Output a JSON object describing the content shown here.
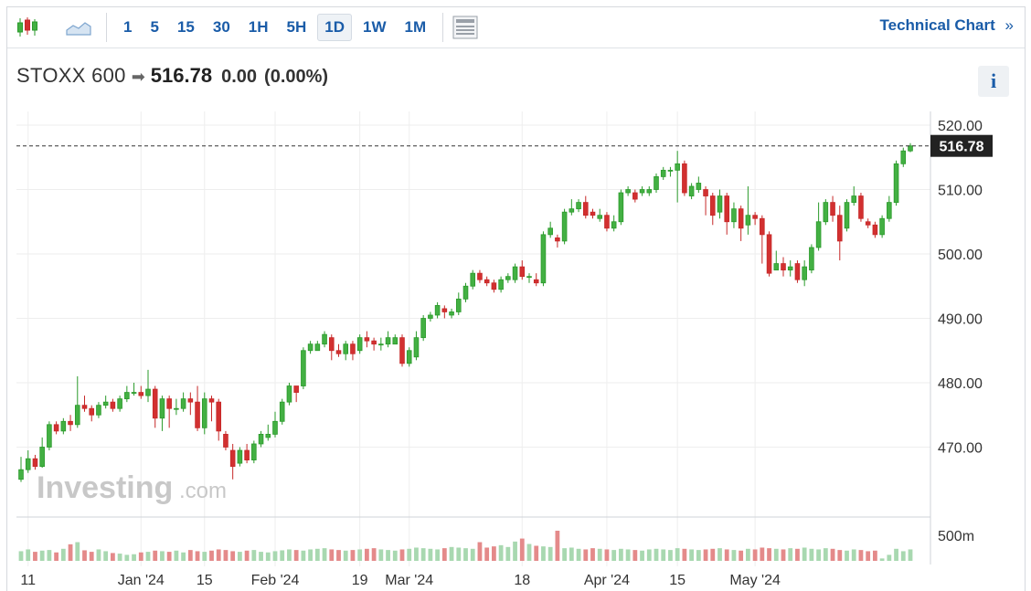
{
  "toolbar": {
    "timeframes": [
      "1",
      "5",
      "15",
      "30",
      "1H",
      "5H",
      "1D",
      "1W",
      "1M"
    ],
    "active_timeframe": "1D",
    "technical_chart_label": "Technical Chart",
    "technical_chart_chevron": "»"
  },
  "header": {
    "name": "STOXX 600",
    "price": "516.78",
    "change": "0.00",
    "change_pct": "(0.00%)",
    "info_label": "i"
  },
  "watermark": {
    "brand": "Investing",
    "suffix": ".com"
  },
  "colors": {
    "up": "#2a9a2a",
    "up_fill": "#43b043",
    "down": "#c62828",
    "down_fill": "#d23030",
    "vol_up": "#a8d8b0",
    "vol_down": "#e48a8a",
    "grid": "#eeeeee",
    "price_tag_bg": "#222222"
  },
  "chart_data": {
    "type": "candlestick",
    "symbol": "STOXX 600",
    "interval": "1D",
    "y_ticks": [
      "520.00",
      "510.00",
      "500.00",
      "490.00",
      "480.00",
      "470.00"
    ],
    "y_tick_values": [
      520,
      510,
      500,
      490,
      480,
      470
    ],
    "ylim": [
      460.3,
      522.5
    ],
    "last_price": 516.78,
    "last_price_label": "516.78",
    "volume_tick_label": "500m",
    "x_labels": [
      "11",
      "Jan '24",
      "15",
      "Feb '24",
      "19",
      "Mar '24",
      "18",
      "Apr '24",
      "15",
      "May '24"
    ],
    "x_label_index": [
      1,
      17,
      26,
      36,
      48,
      55,
      71,
      83,
      93,
      104
    ],
    "volume_max_rel": 1.0,
    "candles": [
      [
        466.5,
        465.0,
        468.5,
        464.6
      ],
      [
        468.2,
        466.5,
        469.5,
        466.0
      ],
      [
        467.0,
        468.2,
        468.8,
        466.5
      ],
      [
        470.0,
        467.0,
        471.5,
        466.8
      ],
      [
        473.5,
        470.0,
        474.0,
        469.5
      ],
      [
        472.5,
        473.5,
        474.0,
        472.0
      ],
      [
        474.0,
        472.5,
        474.5,
        472.0
      ],
      [
        473.5,
        474.0,
        475.0,
        472.5
      ],
      [
        476.5,
        473.5,
        481.0,
        473.0
      ],
      [
        476.0,
        476.5,
        478.0,
        475.5
      ],
      [
        475.0,
        476.0,
        476.5,
        474.0
      ],
      [
        476.5,
        475.0,
        477.0,
        474.5
      ],
      [
        477.0,
        476.5,
        478.0,
        476.0
      ],
      [
        476.0,
        477.0,
        477.5,
        475.5
      ],
      [
        477.5,
        476.0,
        478.0,
        475.5
      ],
      [
        478.5,
        477.5,
        479.5,
        477.0
      ],
      [
        478.5,
        478.5,
        480.0,
        478.0
      ],
      [
        478.0,
        478.5,
        479.5,
        477.5
      ],
      [
        479.0,
        478.0,
        482.0,
        477.0
      ],
      [
        474.5,
        479.0,
        479.5,
        473.0
      ],
      [
        477.5,
        474.5,
        478.0,
        472.5
      ],
      [
        476.0,
        477.5,
        478.0,
        473.0
      ],
      [
        476.0,
        476.0,
        477.5,
        475.0
      ],
      [
        477.5,
        476.0,
        478.5,
        475.5
      ],
      [
        477.0,
        477.5,
        478.5,
        475.0
      ],
      [
        473.0,
        477.0,
        479.5,
        472.5
      ],
      [
        477.5,
        473.0,
        478.5,
        472.0
      ],
      [
        477.0,
        477.5,
        478.0,
        474.0
      ],
      [
        472.5,
        477.0,
        477.5,
        471.0
      ],
      [
        470.0,
        472.0,
        472.5,
        469.5
      ],
      [
        467.0,
        469.5,
        470.5,
        465.0
      ],
      [
        469.5,
        467.5,
        470.0,
        467.0
      ],
      [
        468.0,
        469.5,
        470.5,
        467.5
      ],
      [
        470.5,
        468.0,
        471.0,
        467.5
      ],
      [
        472.0,
        470.5,
        472.5,
        470.0
      ],
      [
        472.0,
        471.5,
        473.5,
        471.0
      ],
      [
        474.0,
        472.0,
        475.5,
        471.5
      ],
      [
        477.0,
        474.0,
        477.5,
        473.5
      ],
      [
        479.5,
        477.0,
        480.0,
        476.5
      ],
      [
        478.5,
        479.5,
        479.5,
        477.0
      ],
      [
        485.0,
        479.5,
        485.5,
        479.0
      ],
      [
        486.0,
        485.0,
        486.5,
        484.5
      ],
      [
        486.0,
        485.0,
        486.5,
        485.0
      ],
      [
        487.5,
        486.0,
        488.0,
        485.5
      ],
      [
        485.0,
        487.0,
        487.5,
        483.5
      ],
      [
        484.5,
        485.0,
        486.0,
        484.0
      ],
      [
        486.0,
        484.5,
        486.5,
        483.5
      ],
      [
        484.5,
        486.0,
        486.5,
        483.5
      ],
      [
        487.0,
        485.0,
        487.5,
        484.5
      ],
      [
        486.5,
        487.0,
        488.0,
        485.5
      ],
      [
        486.0,
        486.5,
        487.0,
        485.0
      ],
      [
        486.0,
        486.0,
        487.0,
        485.0
      ],
      [
        487.0,
        486.0,
        488.0,
        485.5
      ],
      [
        487.0,
        486.0,
        487.5,
        486.0
      ],
      [
        483.0,
        487.0,
        487.5,
        482.5
      ],
      [
        485.0,
        483.0,
        485.5,
        482.5
      ],
      [
        487.0,
        484.0,
        488.0,
        483.5
      ],
      [
        490.0,
        487.0,
        490.5,
        486.5
      ],
      [
        490.5,
        490.0,
        491.0,
        489.5
      ],
      [
        492.0,
        490.5,
        492.5,
        490.0
      ],
      [
        491.0,
        491.5,
        492.0,
        490.0
      ],
      [
        491.0,
        490.5,
        491.5,
        490.0
      ],
      [
        493.0,
        491.0,
        494.0,
        490.5
      ],
      [
        495.0,
        493.0,
        495.5,
        492.5
      ],
      [
        497.0,
        495.0,
        497.5,
        494.5
      ],
      [
        496.0,
        497.0,
        497.5,
        495.5
      ],
      [
        495.5,
        496.0,
        496.5,
        495.0
      ],
      [
        494.5,
        495.5,
        496.0,
        494.0
      ],
      [
        496.0,
        494.5,
        496.5,
        494.0
      ],
      [
        496.5,
        496.0,
        497.0,
        495.5
      ],
      [
        498.0,
        496.0,
        498.5,
        495.5
      ],
      [
        496.5,
        498.0,
        499.0,
        496.0
      ],
      [
        496.5,
        496.5,
        497.0,
        495.5
      ],
      [
        495.5,
        496.0,
        497.0,
        495.0
      ],
      [
        503.0,
        495.5,
        503.5,
        495.0
      ],
      [
        504.0,
        503.0,
        505.0,
        502.5
      ],
      [
        502.0,
        502.5,
        503.0,
        501.0
      ],
      [
        506.5,
        502.0,
        507.0,
        501.5
      ],
      [
        507.0,
        506.5,
        508.5,
        506.0
      ],
      [
        508.0,
        507.0,
        508.5,
        506.5
      ],
      [
        506.0,
        508.0,
        509.0,
        505.5
      ],
      [
        506.0,
        506.5,
        507.0,
        505.5
      ],
      [
        506.0,
        505.5,
        507.0,
        505.0
      ],
      [
        504.0,
        506.0,
        506.5,
        503.5
      ],
      [
        505.0,
        504.0,
        506.0,
        503.5
      ],
      [
        509.5,
        505.0,
        510.0,
        504.5
      ],
      [
        510.0,
        509.5,
        510.5,
        509.0
      ],
      [
        508.5,
        509.5,
        510.0,
        508.0
      ],
      [
        510.0,
        509.5,
        510.5,
        509.0
      ],
      [
        510.0,
        509.5,
        510.5,
        509.0
      ],
      [
        512.0,
        510.0,
        512.5,
        509.5
      ],
      [
        513.0,
        512.0,
        513.5,
        511.5
      ],
      [
        513.0,
        513.0,
        513.5,
        512.0
      ],
      [
        514.0,
        513.0,
        516.0,
        508.0
      ],
      [
        509.5,
        514.0,
        514.5,
        509.0
      ],
      [
        510.5,
        509.0,
        511.0,
        508.5
      ],
      [
        511.0,
        510.0,
        512.0,
        509.5
      ],
      [
        509.0,
        510.0,
        510.5,
        506.0
      ],
      [
        506.0,
        509.0,
        509.5,
        504.5
      ],
      [
        509.0,
        506.5,
        510.0,
        505.5
      ],
      [
        505.0,
        509.0,
        509.5,
        503.0
      ],
      [
        507.0,
        505.0,
        508.0,
        504.0
      ],
      [
        504.0,
        507.0,
        507.5,
        502.0
      ],
      [
        506.0,
        504.5,
        510.5,
        503.0
      ],
      [
        505.5,
        506.0,
        506.5,
        504.5
      ],
      [
        503.0,
        505.5,
        506.0,
        498.5
      ],
      [
        497.0,
        503.0,
        503.5,
        496.5
      ],
      [
        498.5,
        497.5,
        500.5,
        497.5
      ],
      [
        497.5,
        498.5,
        499.5,
        496.5
      ],
      [
        498.0,
        497.5,
        499.0,
        496.5
      ],
      [
        496.0,
        498.5,
        499.0,
        495.5
      ],
      [
        498.0,
        496.0,
        499.0,
        495.0
      ],
      [
        501.0,
        497.5,
        501.5,
        497.0
      ],
      [
        505.0,
        501.0,
        508.0,
        500.5
      ],
      [
        508.0,
        505.0,
        508.5,
        504.5
      ],
      [
        506.0,
        508.0,
        509.0,
        505.0
      ],
      [
        502.0,
        506.0,
        507.5,
        499.0
      ],
      [
        508.0,
        504.0,
        508.5,
        503.5
      ],
      [
        509.0,
        508.0,
        510.5,
        507.5
      ],
      [
        505.5,
        509.0,
        509.5,
        505.0
      ],
      [
        504.5,
        505.0,
        505.5,
        504.0
      ],
      [
        503.0,
        504.5,
        505.0,
        502.5
      ],
      [
        505.5,
        503.0,
        506.0,
        502.5
      ],
      [
        508.0,
        505.5,
        509.0,
        505.0
      ],
      [
        514.0,
        508.0,
        514.5,
        507.5
      ],
      [
        516.0,
        514.0,
        516.5,
        513.5
      ],
      [
        516.78,
        516.0,
        517.2,
        515.8
      ]
    ]
  }
}
